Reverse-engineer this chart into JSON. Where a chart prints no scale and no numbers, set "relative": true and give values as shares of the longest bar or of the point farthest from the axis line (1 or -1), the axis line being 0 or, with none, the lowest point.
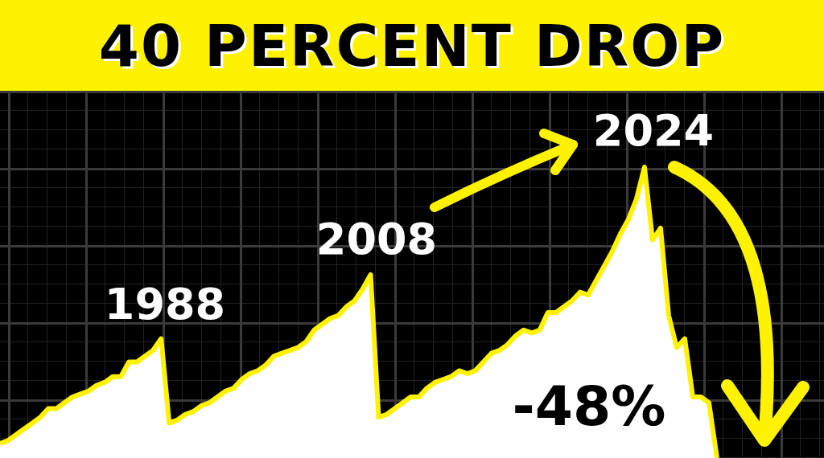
{
  "chart_data": {
    "type": "area",
    "title": "40 PERCENT DROP",
    "relative": true,
    "categories": [
      null,
      null,
      null,
      null,
      null,
      null,
      null,
      null,
      null,
      null,
      null,
      null,
      null,
      null,
      null,
      null,
      null,
      null,
      null,
      null,
      null,
      null,
      null,
      null,
      null,
      null,
      null,
      null,
      null,
      null,
      null,
      null,
      null,
      null,
      null,
      null,
      null,
      null,
      null,
      null,
      null,
      null,
      null,
      null,
      null,
      null,
      null,
      null,
      null,
      null,
      null,
      null,
      null,
      null,
      null,
      null,
      null,
      null,
      null,
      null,
      null,
      null,
      null,
      null,
      null,
      null,
      null,
      null,
      null,
      null,
      null,
      null,
      null,
      null,
      null,
      null,
      null,
      null,
      null,
      null,
      null,
      null,
      null,
      null,
      null,
      null,
      null,
      null,
      null,
      null
    ],
    "series": [
      {
        "color": "#fff200",
        "values": [
          0.05,
          0.06,
          0.08,
          0.1,
          0.12,
          0.14,
          0.17,
          0.17,
          0.19,
          0.21,
          0.22,
          0.23,
          0.25,
          0.26,
          0.28,
          0.28,
          0.33,
          0.33,
          0.35,
          0.37,
          0.41,
          0.12,
          0.13,
          0.15,
          0.16,
          0.18,
          0.19,
          0.21,
          0.23,
          0.24,
          0.27,
          0.29,
          0.3,
          0.32,
          0.35,
          0.36,
          0.37,
          0.38,
          0.4,
          0.44,
          0.46,
          0.48,
          0.49,
          0.52,
          0.54,
          0.58,
          0.63,
          0.14,
          0.15,
          0.17,
          0.19,
          0.21,
          0.21,
          0.24,
          0.26,
          0.27,
          0.28,
          0.3,
          0.29,
          0.3,
          0.33,
          0.36,
          0.37,
          0.39,
          0.42,
          0.44,
          0.43,
          0.44,
          0.5,
          0.5,
          0.52,
          0.54,
          0.57,
          0.56,
          0.61,
          0.66,
          0.71,
          0.77,
          0.82,
          0.89,
          1,
          0.75,
          0.79,
          0.49,
          0.38,
          0.41,
          0.21,
          0.21,
          0.19,
          0
        ]
      }
    ],
    "annotations": [
      "1988",
      "2008",
      "2024",
      "-48%"
    ]
  }
}
